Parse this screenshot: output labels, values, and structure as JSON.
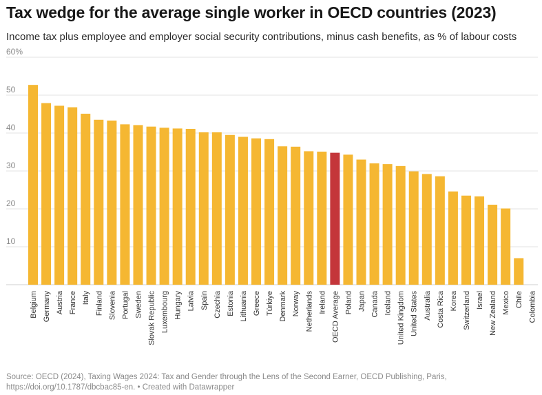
{
  "chart_data": {
    "type": "bar",
    "title": "Tax wedge for the average single worker in OECD countries (2023)",
    "subtitle": "Income tax plus employee and employer social security contributions, minus cash benefits, as % of labour costs",
    "xlabel": "",
    "ylabel": "",
    "ylim": [
      0,
      60
    ],
    "y_ticks": [
      {
        "value": 10,
        "label": "10"
      },
      {
        "value": 20,
        "label": "20"
      },
      {
        "value": 30,
        "label": "30"
      },
      {
        "value": 40,
        "label": "40"
      },
      {
        "value": 50,
        "label": "50"
      },
      {
        "value": 60,
        "label": "60%"
      }
    ],
    "grid": true,
    "categories": [
      "Belgium",
      "Germany",
      "Austria",
      "France",
      "Italy",
      "Finland",
      "Slovenia",
      "Portugal",
      "Sweden",
      "Slovak Republic",
      "Luxembourg",
      "Hungary",
      "Latvia",
      "Spain",
      "Czechia",
      "Estonia",
      "Lithuania",
      "Greece",
      "Türkiye",
      "Denmark",
      "Norway",
      "Netherlands",
      "Ireland",
      "OECD Average",
      "Poland",
      "Japan",
      "Canada",
      "Iceland",
      "United Kingdom",
      "United States",
      "Australia",
      "Costa Rica",
      "Korea",
      "Switzerland",
      "Israel",
      "New Zealand",
      "Mexico",
      "Chile",
      "Colombia"
    ],
    "values": [
      52.7,
      47.9,
      47.2,
      46.8,
      45.1,
      43.5,
      43.3,
      42.3,
      42.1,
      41.7,
      41.4,
      41.2,
      41.1,
      40.2,
      40.2,
      39.5,
      39.0,
      38.6,
      38.4,
      36.5,
      36.4,
      35.2,
      35.1,
      34.8,
      34.3,
      33.0,
      32.0,
      31.8,
      31.3,
      29.9,
      29.2,
      28.6,
      24.6,
      23.5,
      23.3,
      21.1,
      20.1,
      7.0,
      0.0
    ],
    "highlight": "OECD Average",
    "colors": {
      "bar": "#f5b732",
      "highlight": "#c4363a",
      "grid": "#e3e3e3",
      "axis_text": "#8a8a8a",
      "label_text": "#333333"
    }
  },
  "source": {
    "line1": "Source: OECD (2024), Taxing Wages 2024: Tax and Gender through the Lens of the Second Earner, OECD Publishing, Paris,",
    "line2": "https://doi.org/10.1787/dbcbac85-en. • Created with Datawrapper"
  }
}
